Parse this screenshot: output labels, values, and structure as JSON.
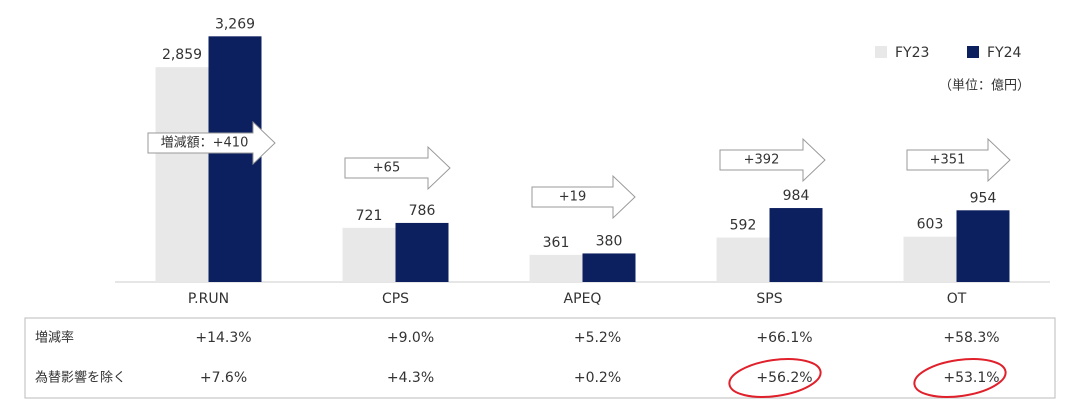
{
  "chart_data": {
    "type": "bar",
    "categories": [
      "P.RUN",
      "CPS",
      "APEQ",
      "SPS",
      "OT"
    ],
    "series": [
      {
        "name": "FY23",
        "color": "#e8e8e8",
        "values": [
          2859,
          721,
          361,
          592,
          603
        ],
        "value_labels": [
          "2,859",
          "721",
          "361",
          "592",
          "603"
        ]
      },
      {
        "name": "FY24",
        "color": "#0c1f5e",
        "values": [
          3269,
          786,
          380,
          984,
          954
        ],
        "value_labels": [
          "3,269",
          "786",
          "380",
          "984",
          "954"
        ]
      }
    ],
    "ylim": [
      0,
      3300
    ],
    "unit_note": "（単位：億円）",
    "legend": "top-right",
    "annotations": [
      "増減額：+410",
      "+65",
      "+19",
      "+392",
      "+351"
    ]
  },
  "table": {
    "rows": [
      {
        "label": "増減率",
        "values": [
          "+14.3%",
          "+9.0%",
          "+5.2%",
          "+66.1%",
          "+58.3%"
        ]
      },
      {
        "label": "為替影響を除く",
        "values": [
          "+7.6%",
          "+4.3%",
          "+0.2%",
          "+56.2%",
          "+53.1%"
        ]
      }
    ]
  }
}
